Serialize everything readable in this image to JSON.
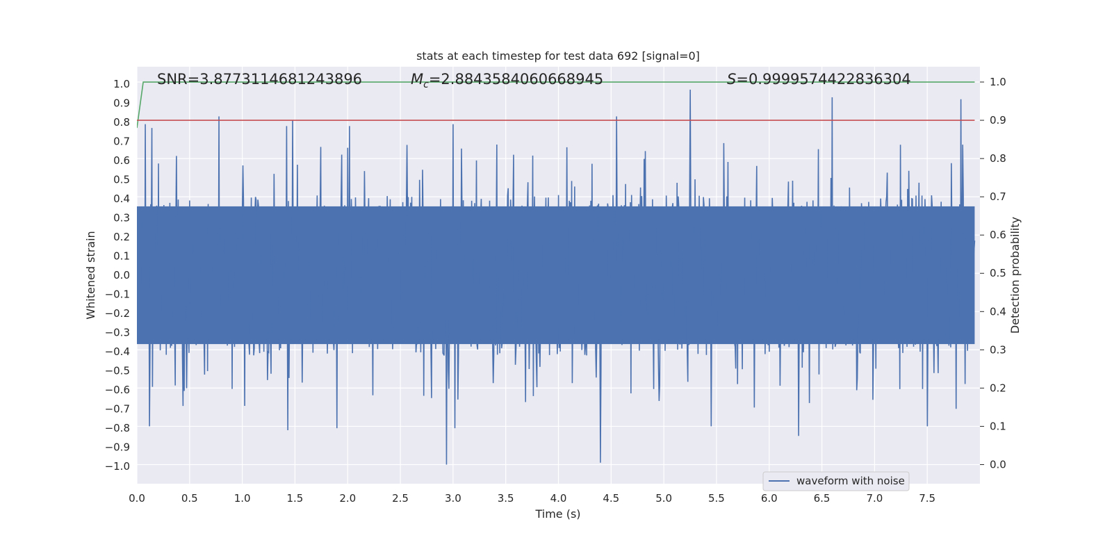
{
  "chart_data": {
    "type": "line",
    "title": "stats at each timestep for test data 692 [signal=0]",
    "xlabel": "Time (s)",
    "ylabel": "Whitened strain",
    "y2label": "Detection probability",
    "xlim": [
      0.0,
      8.0
    ],
    "ylim": [
      -1.09,
      1.09
    ],
    "y2lim": [
      -0.05,
      1.04
    ],
    "xticks": [
      "0.0",
      "0.5",
      "1.0",
      "1.5",
      "2.0",
      "2.5",
      "3.0",
      "3.5",
      "4.0",
      "4.5",
      "5.0",
      "5.5",
      "6.0",
      "6.5",
      "7.0",
      "7.5"
    ],
    "yticks": [
      "1.0",
      "0.9",
      "0.8",
      "0.7",
      "0.6",
      "0.5",
      "0.4",
      "0.3",
      "0.2",
      "0.1",
      "0.0",
      "-0.1",
      "-0.2",
      "-0.3",
      "-0.4",
      "-0.5",
      "-0.6",
      "-0.7",
      "-0.8",
      "-0.9",
      "-1.0"
    ],
    "y2ticks": [
      "1.0",
      "0.9",
      "0.8",
      "0.7",
      "0.6",
      "0.5",
      "0.4",
      "0.3",
      "0.2",
      "0.1",
      "0.0"
    ],
    "annotations": {
      "snr": "SNR=3.8773114681243896",
      "mc_symbol": "M",
      "mc_sub": "c",
      "mc_value": "=2.8843584060668945",
      "s_symbol": "S",
      "s_value": "=0.9999574422836304"
    },
    "series": [
      {
        "name": "waveform with noise",
        "axis": "left",
        "color": "#4c72b0",
        "envelope": "dense whitened noise, amplitude mostly within ±0.4",
        "peaks": [
          {
            "x": 0.08,
            "y": 0.79
          },
          {
            "x": 0.14,
            "y": 0.77
          },
          {
            "x": 0.78,
            "y": 0.83
          },
          {
            "x": 1.42,
            "y": 0.78
          },
          {
            "x": 1.48,
            "y": 0.81
          },
          {
            "x": 2.02,
            "y": 0.78
          },
          {
            "x": 2.94,
            "y": 0.77
          },
          {
            "x": 3.0,
            "y": 0.79
          },
          {
            "x": 4.55,
            "y": 0.83
          },
          {
            "x": 5.25,
            "y": 0.97
          },
          {
            "x": 6.6,
            "y": 0.93
          },
          {
            "x": 7.82,
            "y": 0.92
          }
        ],
        "troughs": [
          {
            "x": 0.12,
            "y": -0.79
          },
          {
            "x": 1.43,
            "y": -0.81
          },
          {
            "x": 1.9,
            "y": -0.8
          },
          {
            "x": 2.94,
            "y": -0.99
          },
          {
            "x": 3.02,
            "y": -0.8
          },
          {
            "x": 4.4,
            "y": -0.98
          },
          {
            "x": 5.45,
            "y": -0.79
          },
          {
            "x": 6.28,
            "y": -0.84
          },
          {
            "x": 7.5,
            "y": -0.79
          }
        ]
      },
      {
        "name": "detection probability",
        "axis": "right",
        "color": "#55a868",
        "x": [
          0.0,
          0.06,
          7.95
        ],
        "y": [
          0.88,
          1.0,
          1.0
        ]
      },
      {
        "name": "threshold",
        "axis": "right",
        "color": "#c44e52",
        "x": [
          0.0,
          7.95
        ],
        "y": [
          0.9,
          0.9
        ]
      }
    ],
    "legend": {
      "position": "lower-right",
      "label": "waveform with noise"
    },
    "grid": true
  }
}
